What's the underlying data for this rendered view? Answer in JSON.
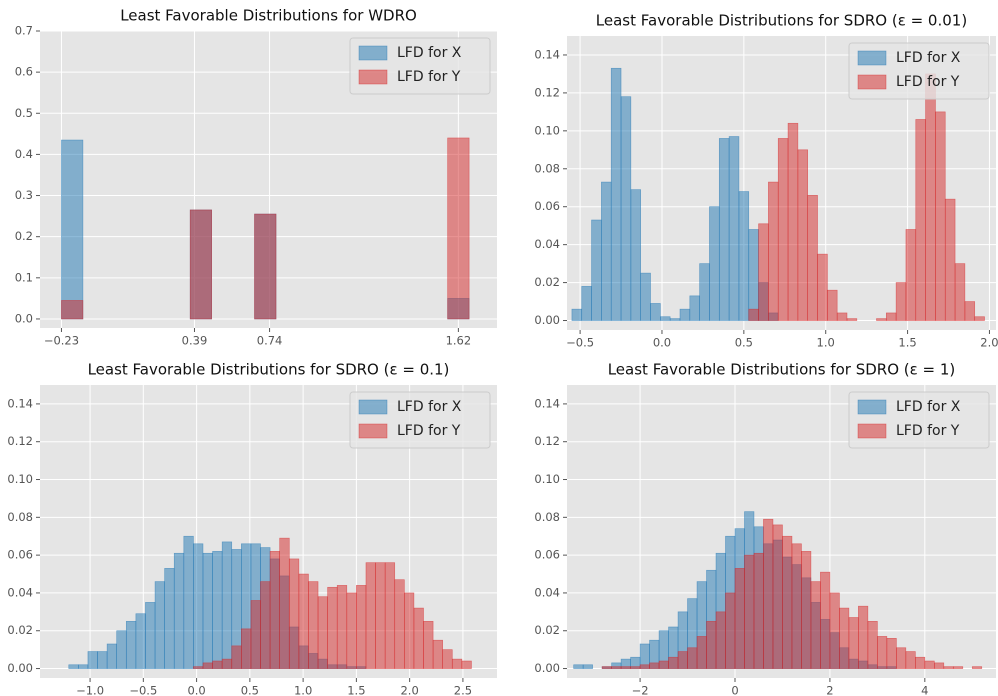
{
  "chart_data": [
    {
      "type": "histogram",
      "title": "Least Favorable Distributions for WDRO",
      "bins": [
        -0.23,
        -0.13,
        -0.03,
        0.07,
        0.17,
        0.27,
        0.37,
        0.47,
        0.57,
        0.67,
        0.77,
        0.87,
        0.97,
        1.07,
        1.17,
        1.27,
        1.37,
        1.47,
        1.57,
        1.67
      ],
      "series": [
        {
          "name": "LFD for X",
          "color": "#1f77b4",
          "values": [
            0.435,
            0,
            0,
            0,
            0,
            0,
            0.265,
            0,
            0,
            0.255,
            0,
            0,
            0,
            0,
            0,
            0,
            0,
            0,
            0.05
          ]
        },
        {
          "name": "LFD for Y",
          "color": "#d62728",
          "values": [
            0.045,
            0,
            0,
            0,
            0,
            0,
            0.265,
            0,
            0,
            0.255,
            0,
            0,
            0,
            0,
            0,
            0,
            0,
            0,
            0.44
          ]
        }
      ],
      "xlim": [
        -0.33,
        1.8
      ],
      "ylim": [
        -0.022,
        0.7
      ],
      "xticks": [
        {
          "value": -0.23,
          "label": "−0.23"
        },
        0.39,
        0.74,
        1.62
      ],
      "yticks": [
        {
          "value": 0,
          "label": "0.0"
        },
        0.1,
        0.2,
        0.3,
        0.4,
        0.5,
        0.6,
        0.7
      ],
      "grid": true,
      "legend": "upper right"
    },
    {
      "type": "histogram",
      "title": "Least Favorable Distributions for SDRO (ε = 0.01)",
      "bins": [
        -0.55,
        -0.49,
        -0.43,
        -0.37,
        -0.31,
        -0.25,
        -0.19,
        -0.13,
        -0.07,
        -0.01,
        0.05,
        0.11,
        0.17,
        0.23,
        0.29,
        0.35,
        0.41,
        0.47,
        0.53,
        0.59,
        0.65,
        0.71,
        0.77,
        0.83,
        0.89,
        0.95,
        1.01,
        1.07,
        1.13,
        1.19,
        1.25,
        1.31,
        1.37,
        1.43,
        1.49,
        1.55,
        1.61,
        1.67,
        1.73,
        1.79,
        1.85,
        1.91,
        1.97
      ],
      "series": [
        {
          "name": "LFD for X",
          "color": "#1f77b4",
          "values": [
            0.006,
            0.018,
            0.053,
            0.073,
            0.133,
            0.118,
            0.069,
            0.025,
            0.009,
            0.002,
            0.001,
            0.006,
            0.013,
            0.03,
            0.06,
            0.096,
            0.097,
            0.068,
            0.048,
            0.02,
            0.004,
            0,
            0,
            0,
            0,
            0,
            0,
            0,
            0,
            0,
            0,
            0,
            0,
            0,
            0,
            0,
            0,
            0,
            0,
            0,
            0,
            0
          ]
        },
        {
          "name": "LFD for Y",
          "color": "#d62728",
          "values": [
            0,
            0,
            0,
            0,
            0,
            0,
            0,
            0,
            0,
            0,
            0,
            0,
            0,
            0,
            0,
            0,
            0,
            0,
            0.006,
            0.051,
            0.073,
            0.096,
            0.104,
            0.09,
            0.066,
            0.035,
            0.016,
            0.004,
            0.001,
            0,
            0,
            0.001,
            0.004,
            0.02,
            0.048,
            0.106,
            0.13,
            0.11,
            0.064,
            0.03,
            0.01,
            0.002
          ]
        }
      ],
      "xlim": [
        -0.58,
        2.04
      ],
      "ylim": [
        -0.005,
        0.15
      ],
      "xticks": [
        {
          "value": -0.5,
          "label": "−0.5"
        },
        {
          "value": 0,
          "label": "0.0"
        },
        0.5,
        {
          "value": 1,
          "label": "1.0"
        },
        1.5,
        {
          "value": 2,
          "label": "2.0"
        }
      ],
      "yticks": [
        {
          "value": 0,
          "label": "0.00"
        },
        {
          "value": 0.02,
          "label": "0.02"
        },
        {
          "value": 0.04,
          "label": "0.04"
        },
        {
          "value": 0.06,
          "label": "0.06"
        },
        {
          "value": 0.08,
          "label": "0.08"
        },
        {
          "value": 0.1,
          "label": "0.10"
        },
        {
          "value": 0.12,
          "label": "0.12"
        },
        {
          "value": 0.14,
          "label": "0.14"
        }
      ],
      "grid": true,
      "legend": "upper right"
    },
    {
      "type": "histogram",
      "title": "Least Favorable Distributions for SDRO (ε = 0.1)",
      "bins": [
        -1.2,
        -1.11,
        -1.02,
        -0.93,
        -0.84,
        -0.75,
        -0.66,
        -0.57,
        -0.48,
        -0.39,
        -0.3,
        -0.21,
        -0.12,
        -0.03,
        0.06,
        0.15,
        0.24,
        0.33,
        0.42,
        0.51,
        0.6,
        0.69,
        0.78,
        0.87,
        0.96,
        1.05,
        1.14,
        1.23,
        1.32,
        1.41,
        1.5,
        1.59,
        1.68,
        1.77,
        1.86,
        1.95,
        2.04,
        2.13,
        2.22,
        2.31,
        2.4,
        2.49,
        2.58
      ],
      "series": [
        {
          "name": "LFD for X",
          "color": "#1f77b4",
          "values": [
            0.002,
            0.002,
            0.009,
            0.009,
            0.013,
            0.02,
            0.025,
            0.029,
            0.035,
            0.046,
            0.053,
            0.061,
            0.07,
            0.066,
            0.061,
            0.062,
            0.067,
            0.063,
            0.066,
            0.066,
            0.064,
            0.058,
            0.049,
            0.022,
            0.012,
            0.008,
            0.005,
            0.002,
            0.002,
            0.001,
            0.001,
            0,
            0,
            0,
            0,
            0,
            0,
            0,
            0,
            0,
            0,
            0
          ]
        },
        {
          "name": "LFD for Y",
          "color": "#d62728",
          "values": [
            0,
            0,
            0,
            0,
            0,
            0,
            0,
            0,
            0,
            0,
            0,
            0,
            0,
            0.001,
            0.003,
            0.004,
            0.005,
            0.012,
            0.021,
            0.036,
            0.046,
            0.062,
            0.069,
            0.058,
            0.05,
            0.046,
            0.038,
            0.043,
            0.044,
            0.04,
            0.044,
            0.056,
            0.056,
            0.056,
            0.047,
            0.04,
            0.032,
            0.025,
            0.015,
            0.01,
            0.005,
            0.004
          ]
        }
      ],
      "xlim": [
        -1.47,
        2.82
      ],
      "ylim": [
        -0.005,
        0.15
      ],
      "xticks": [
        {
          "value": -1,
          "label": "−1.0"
        },
        {
          "value": -0.5,
          "label": "−0.5"
        },
        {
          "value": 0,
          "label": "0.0"
        },
        0.5,
        {
          "value": 1,
          "label": "1.0"
        },
        1.5,
        {
          "value": 2,
          "label": "2.0"
        },
        2.5
      ],
      "yticks": [
        {
          "value": 0,
          "label": "0.00"
        },
        {
          "value": 0.02,
          "label": "0.02"
        },
        {
          "value": 0.04,
          "label": "0.04"
        },
        {
          "value": 0.06,
          "label": "0.06"
        },
        {
          "value": 0.08,
          "label": "0.08"
        },
        {
          "value": 0.1,
          "label": "0.10"
        },
        {
          "value": 0.12,
          "label": "0.12"
        },
        {
          "value": 0.14,
          "label": "0.14"
        }
      ],
      "grid": true,
      "legend": "upper right"
    },
    {
      "type": "histogram",
      "title": "Least Favorable Distributions for SDRO (ε = 1)",
      "bins": [
        -3.4,
        -3.2,
        -3.0,
        -2.8,
        -2.6,
        -2.4,
        -2.2,
        -2.0,
        -1.8,
        -1.6,
        -1.4,
        -1.2,
        -1.0,
        -0.8,
        -0.6,
        -0.4,
        -0.2,
        0,
        0.2,
        0.4,
        0.6,
        0.8,
        1.0,
        1.2,
        1.4,
        1.6,
        1.8,
        2.0,
        2.2,
        2.4,
        2.6,
        2.8,
        3.0,
        3.2,
        3.4,
        3.6,
        3.8,
        4.0,
        4.2,
        4.4,
        4.6,
        4.8,
        5.0,
        5.2
      ],
      "series": [
        {
          "name": "LFD for X",
          "color": "#1f77b4",
          "values": [
            0.002,
            0.002,
            0,
            0.001,
            0.003,
            0.005,
            0.006,
            0.013,
            0.015,
            0.02,
            0.022,
            0.03,
            0.037,
            0.046,
            0.052,
            0.061,
            0.07,
            0.074,
            0.083,
            0.075,
            0.066,
            0.068,
            0.059,
            0.055,
            0.048,
            0.035,
            0.026,
            0.019,
            0.011,
            0.005,
            0.004,
            0.002,
            0.001,
            0.001,
            0,
            0,
            0,
            0,
            0,
            0,
            0,
            0,
            0
          ]
        },
        {
          "name": "LFD for Y",
          "color": "#d62728",
          "values": [
            0,
            0,
            0,
            0.001,
            0.001,
            0.001,
            0.001,
            0.002,
            0.003,
            0.004,
            0.006,
            0.009,
            0.011,
            0.017,
            0.025,
            0.03,
            0.04,
            0.053,
            0.06,
            0.061,
            0.079,
            0.076,
            0.07,
            0.066,
            0.062,
            0.046,
            0.051,
            0.04,
            0.032,
            0.027,
            0.033,
            0.025,
            0.017,
            0.016,
            0.011,
            0.009,
            0.006,
            0.004,
            0.003,
            0.001,
            0.001,
            0,
            0.001
          ]
        }
      ],
      "xlim": [
        -3.54,
        5.5
      ],
      "ylim": [
        -0.005,
        0.15
      ],
      "xticks": [
        {
          "value": -2,
          "label": "−2"
        },
        0,
        2,
        4
      ],
      "yticks": [
        {
          "value": 0,
          "label": "0.00"
        },
        {
          "value": 0.02,
          "label": "0.02"
        },
        {
          "value": 0.04,
          "label": "0.04"
        },
        {
          "value": 0.06,
          "label": "0.06"
        },
        {
          "value": 0.08,
          "label": "0.08"
        },
        {
          "value": 0.1,
          "label": "0.10"
        },
        {
          "value": 0.12,
          "label": "0.12"
        },
        {
          "value": 0.14,
          "label": "0.14"
        }
      ],
      "grid": true,
      "legend": "upper right"
    }
  ]
}
